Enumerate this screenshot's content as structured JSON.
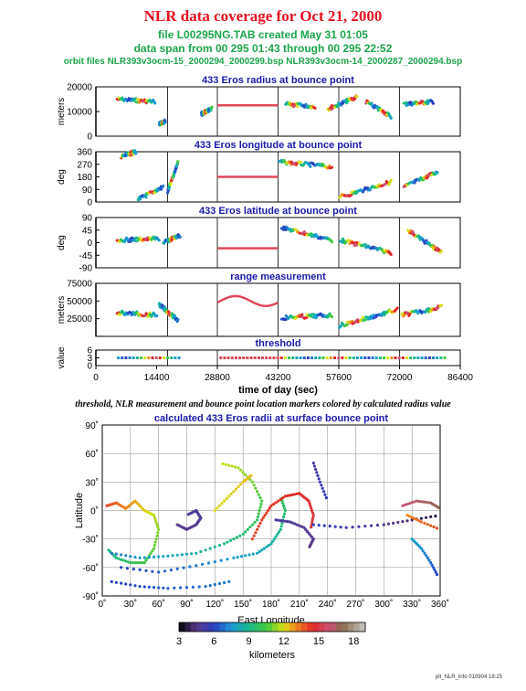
{
  "header": {
    "title": "NLR data coverage for Oct 21, 2000",
    "file_line": "file L00295NG.TAB created May 31 01:05",
    "span_line": "data span from 00 295 01:43 through 00 295 22:52",
    "orbit_line": "orbit files NLR393v3ocm-15_2000294_2000299.bsp NLR393v3ocm-14_2000287_2000294.bsp"
  },
  "caption": "threshold, NLR measurement and bounce point location markers colored by calculated radius value",
  "footer": "plt_NLR_info 010904 18:25",
  "colors": {
    "title": "#e8101e",
    "subtitle": "#1aa64a",
    "panel_title": "#1a1aa8",
    "flat_track": "#e0485a"
  },
  "chart_data": [
    {
      "type": "line",
      "title": "433 Eros radius at bounce point",
      "ylabel": "meters",
      "ylim": [
        0,
        20000
      ],
      "yticks": [
        "0",
        "10000",
        "20000"
      ],
      "xlim": [
        0,
        86400
      ],
      "x": [
        0,
        28800,
        43200,
        86400
      ],
      "values": [
        0,
        12500,
        12500,
        0
      ]
    },
    {
      "type": "line",
      "title": "433 Eros longitude at bounce point",
      "ylabel": "deg",
      "ylim": [
        0,
        360
      ],
      "yticks": [
        "0",
        "90",
        "180",
        "270",
        "360"
      ],
      "xlim": [
        0,
        86400
      ],
      "x": [
        0,
        28800,
        43200,
        86400
      ],
      "values": [
        0,
        180,
        180,
        0
      ]
    },
    {
      "type": "line",
      "title": "433 Eros latitude at bounce point",
      "ylabel": "deg",
      "ylim": [
        -90,
        90
      ],
      "yticks": [
        "-90",
        "-45",
        "0",
        "45",
        "90"
      ],
      "xlim": [
        0,
        86400
      ],
      "x": [
        0,
        28800,
        43200,
        86400
      ],
      "values": [
        0,
        -20,
        -20,
        0
      ]
    },
    {
      "type": "line",
      "title": "range measurement",
      "ylabel": "meters",
      "ylim": [
        0,
        75000
      ],
      "yticks": [
        "25000",
        "50000",
        "75000"
      ],
      "xlim": [
        0,
        86400
      ],
      "x": [
        0,
        28800,
        36000,
        43200,
        86400
      ],
      "values": [
        0,
        50000,
        55000,
        50000,
        0
      ]
    },
    {
      "type": "scatter",
      "title": "threshold",
      "ylabel": "value",
      "ylim": [
        0,
        6
      ],
      "yticks": [
        "0",
        "3",
        "6"
      ],
      "xlim": [
        0,
        86400
      ],
      "xticks": [
        "0",
        "14400",
        "28800",
        "43200",
        "57600",
        "72000",
        "86400"
      ],
      "xlabel": "time of day (sec)",
      "x": [
        5000,
        86400
      ],
      "values": [
        3,
        3
      ]
    },
    {
      "type": "scatter",
      "title": "calculated 433 Eros radii at surface bounce point",
      "xlabel": "East Longitude",
      "ylabel": "Latitude",
      "xlim": [
        0,
        360
      ],
      "ylim": [
        -90,
        90
      ],
      "xticks": [
        "0˚",
        "30˚",
        "60˚",
        "90˚",
        "120˚",
        "150˚",
        "180˚",
        "210˚",
        "240˚",
        "270˚",
        "300˚",
        "330˚",
        "360˚"
      ],
      "yticks": [
        "90˚",
        "60˚",
        "30˚",
        "0˚",
        "-30˚",
        "-60˚",
        "-90˚"
      ],
      "colorbar": {
        "label": "kilometers",
        "ticks": [
          "3",
          "6",
          "9",
          "12",
          "15",
          "18"
        ],
        "range": [
          3,
          19
        ]
      }
    }
  ]
}
